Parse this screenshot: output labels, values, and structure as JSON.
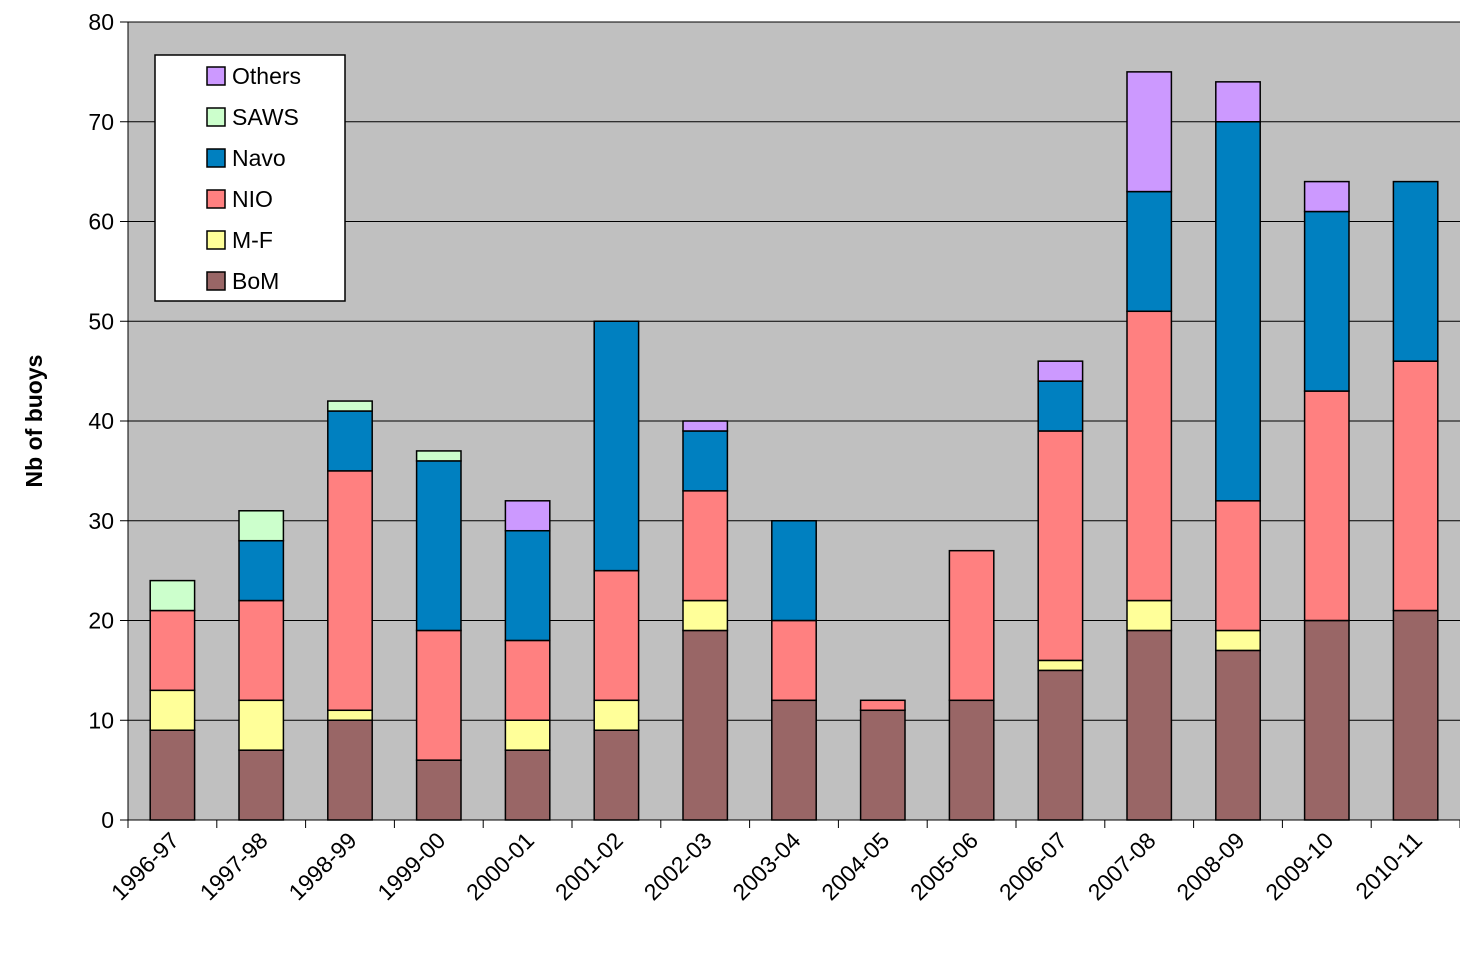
{
  "chart_data": {
    "type": "bar",
    "stacked": true,
    "title": "",
    "xlabel": "",
    "ylabel": "Nb of buoys",
    "ylim": [
      0,
      80
    ],
    "yticks": [
      0,
      10,
      20,
      30,
      40,
      50,
      60,
      70,
      80
    ],
    "grid": true,
    "plot_background": "#c0c0c0",
    "legend_position": "top-left",
    "categories": [
      "1996-97",
      "1997-98",
      "1998-99",
      "1999-00",
      "2000-01",
      "2001-02",
      "2002-03",
      "2003-04",
      "2004-05",
      "2005-06",
      "2006-07",
      "2007-08",
      "2008-09",
      "2009-10",
      "2010-11"
    ],
    "series": [
      {
        "name": "BoM",
        "color": "#996666",
        "values": [
          9,
          7,
          10,
          6,
          7,
          9,
          19,
          12,
          11,
          12,
          15,
          19,
          17,
          20,
          21
        ]
      },
      {
        "name": "M-F",
        "color": "#ffff99",
        "values": [
          4,
          5,
          1,
          0,
          3,
          3,
          3,
          0,
          0,
          0,
          1,
          3,
          2,
          0,
          0
        ]
      },
      {
        "name": "NIO",
        "color": "#ff8080",
        "values": [
          8,
          10,
          24,
          13,
          8,
          13,
          11,
          8,
          1,
          15,
          23,
          29,
          13,
          23,
          25
        ]
      },
      {
        "name": "Navo",
        "color": "#0080c0",
        "values": [
          0,
          6,
          6,
          17,
          11,
          25,
          6,
          10,
          0,
          0,
          5,
          12,
          38,
          18,
          18
        ]
      },
      {
        "name": "SAWS",
        "color": "#ccffcc",
        "values": [
          3,
          3,
          1,
          1,
          0,
          0,
          0,
          0,
          0,
          0,
          0,
          0,
          0,
          0,
          0
        ]
      },
      {
        "name": "Others",
        "color": "#cc99ff",
        "values": [
          0,
          0,
          0,
          0,
          3,
          0,
          1,
          0,
          0,
          0,
          2,
          12,
          4,
          3,
          0
        ]
      }
    ],
    "legend_order": [
      "Others",
      "SAWS",
      "Navo",
      "NIO",
      "M-F",
      "BoM"
    ]
  }
}
